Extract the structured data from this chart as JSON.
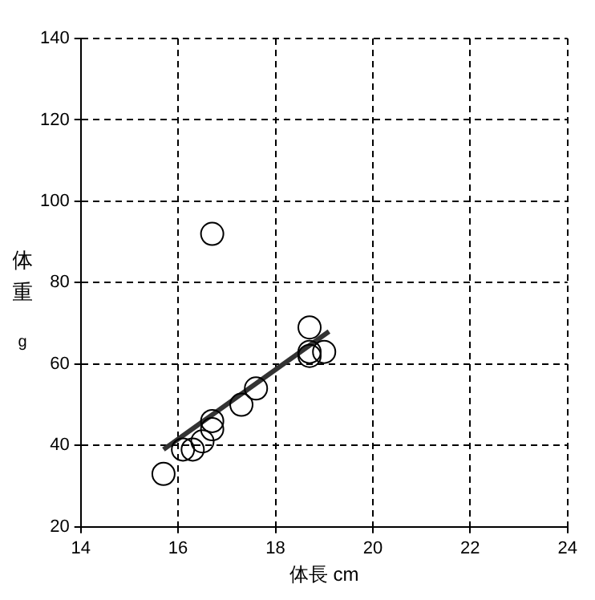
{
  "chart_data": {
    "type": "scatter",
    "xlabel": "体長 cm",
    "ylabel": "体重 g",
    "xlim": [
      14,
      24
    ],
    "xticks": [
      14,
      16,
      18,
      20,
      22,
      24
    ],
    "ylim": [
      20,
      140
    ],
    "yticks": [
      20,
      40,
      60,
      80,
      100,
      120,
      140
    ],
    "grid": true,
    "series": [
      {
        "marker": "circle",
        "color": "#000000",
        "x": [
          15.7,
          16.1,
          16.3,
          16.5,
          16.7,
          16.7,
          16.7,
          17.3,
          17.6,
          18.7,
          18.7,
          19.0,
          18.7
        ],
        "values": [
          33,
          39,
          39,
          41,
          44,
          46,
          92,
          50,
          54,
          69,
          63,
          63,
          62
        ]
      },
      {
        "type": "line",
        "marker": "none",
        "color": "#333333",
        "x": [
          15.7,
          19.1
        ],
        "values": [
          39,
          68
        ]
      }
    ]
  }
}
